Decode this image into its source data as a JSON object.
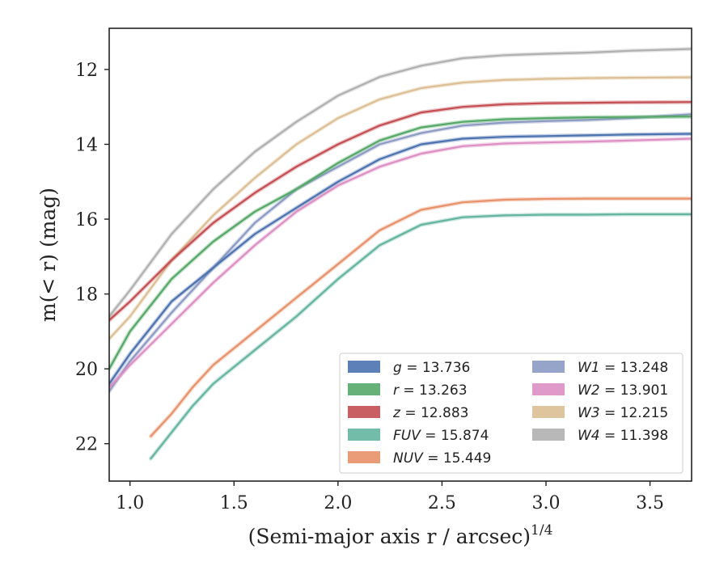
{
  "chart_data": {
    "type": "line",
    "xlabel": "(Semi-major axis r / arcsec)",
    "xlabel_exponent": "1/4",
    "ylabel": "m(< r) (mag)",
    "xlim": [
      0.9,
      3.7
    ],
    "ylim": [
      23.0,
      10.9
    ],
    "y_inverted": true,
    "x_ticks": [
      1.0,
      1.5,
      2.0,
      2.5,
      3.0,
      3.5
    ],
    "x_tick_labels": [
      "1.0",
      "1.5",
      "2.0",
      "2.5",
      "3.0",
      "3.5"
    ],
    "y_ticks": [
      12,
      14,
      16,
      18,
      20,
      22
    ],
    "y_tick_labels": [
      "12",
      "14",
      "16",
      "18",
      "20",
      "22"
    ],
    "grid": false,
    "legend": {
      "placement": "lower-right",
      "columns": 2
    },
    "series": [
      {
        "name": "g = 13.736",
        "band": "g",
        "value": "13.736",
        "color": "#4c72b0",
        "x": [
          0.9,
          1.0,
          1.2,
          1.4,
          1.6,
          1.8,
          2.0,
          2.2,
          2.4,
          2.6,
          2.8,
          3.0,
          3.2,
          3.4,
          3.7
        ],
        "y": [
          20.4,
          19.6,
          18.2,
          17.3,
          16.4,
          15.7,
          15.0,
          14.4,
          14.0,
          13.85,
          13.8,
          13.78,
          13.76,
          13.74,
          13.72
        ]
      },
      {
        "name": "r = 13.263",
        "band": "r",
        "value": "13.263",
        "color": "#55a868",
        "x": [
          0.9,
          1.0,
          1.2,
          1.4,
          1.6,
          1.8,
          2.0,
          2.2,
          2.4,
          2.6,
          2.8,
          3.0,
          3.2,
          3.4,
          3.7
        ],
        "y": [
          20.0,
          19.0,
          17.6,
          16.6,
          15.8,
          15.2,
          14.5,
          13.9,
          13.55,
          13.4,
          13.33,
          13.3,
          13.28,
          13.27,
          13.26
        ]
      },
      {
        "name": "z = 12.883",
        "band": "z",
        "value": "12.883",
        "color": "#c44e52",
        "x": [
          0.9,
          1.0,
          1.2,
          1.4,
          1.6,
          1.8,
          2.0,
          2.2,
          2.4,
          2.6,
          2.8,
          3.0,
          3.2,
          3.4,
          3.7
        ],
        "y": [
          18.7,
          18.2,
          17.1,
          16.1,
          15.3,
          14.6,
          14.0,
          13.5,
          13.15,
          13.0,
          12.93,
          12.9,
          12.89,
          12.88,
          12.87
        ]
      },
      {
        "name": "FUV = 15.874",
        "band": "FUV",
        "value": "15.874",
        "color": "#64b5a0",
        "x": [
          1.1,
          1.2,
          1.3,
          1.4,
          1.6,
          1.8,
          2.0,
          2.2,
          2.4,
          2.6,
          2.8,
          3.0,
          3.2,
          3.4,
          3.7
        ],
        "y": [
          22.4,
          21.7,
          21.0,
          20.4,
          19.5,
          18.6,
          17.6,
          16.7,
          16.15,
          15.95,
          15.9,
          15.88,
          15.88,
          15.87,
          15.87
        ]
      },
      {
        "name": "NUV = 15.449",
        "band": "NUV",
        "value": "15.449",
        "color": "#e8916a",
        "x": [
          1.1,
          1.2,
          1.3,
          1.4,
          1.6,
          1.8,
          2.0,
          2.2,
          2.4,
          2.6,
          2.8,
          3.0,
          3.2,
          3.4,
          3.7
        ],
        "y": [
          21.8,
          21.2,
          20.5,
          19.9,
          19.0,
          18.1,
          17.2,
          16.3,
          15.75,
          15.55,
          15.48,
          15.46,
          15.45,
          15.45,
          15.45
        ]
      },
      {
        "name": "W1 = 13.248",
        "band": "W1",
        "value": "13.248",
        "color": "#8c9ac4",
        "x": [
          0.9,
          1.0,
          1.2,
          1.4,
          1.6,
          1.8,
          2.0,
          2.2,
          2.4,
          2.6,
          2.8,
          3.0,
          3.2,
          3.4,
          3.7
        ],
        "y": [
          20.6,
          19.8,
          18.5,
          17.3,
          16.1,
          15.2,
          14.6,
          14.0,
          13.7,
          13.5,
          13.42,
          13.38,
          13.35,
          13.3,
          13.2
        ]
      },
      {
        "name": "W2 = 13.901",
        "band": "W2",
        "value": "13.901",
        "color": "#dd8fc4",
        "x": [
          0.9,
          1.0,
          1.2,
          1.4,
          1.6,
          1.8,
          2.0,
          2.2,
          2.4,
          2.6,
          2.8,
          3.0,
          3.2,
          3.4,
          3.7
        ],
        "y": [
          20.5,
          19.9,
          18.8,
          17.7,
          16.7,
          15.8,
          15.1,
          14.6,
          14.25,
          14.05,
          13.98,
          13.95,
          13.93,
          13.9,
          13.85
        ]
      },
      {
        "name": "W3 = 12.215",
        "band": "W3",
        "value": "12.215",
        "color": "#dcbf94",
        "x": [
          0.9,
          1.0,
          1.2,
          1.4,
          1.6,
          1.8,
          2.0,
          2.2,
          2.4,
          2.6,
          2.8,
          3.0,
          3.2,
          3.4,
          3.7
        ],
        "y": [
          19.2,
          18.6,
          17.1,
          15.9,
          14.9,
          14.0,
          13.3,
          12.8,
          12.5,
          12.35,
          12.28,
          12.25,
          12.23,
          12.22,
          12.21
        ]
      },
      {
        "name": "W4 = 11.398",
        "band": "W4",
        "value": "11.398",
        "color": "#b0b0b0",
        "x": [
          0.9,
          1.0,
          1.2,
          1.4,
          1.6,
          1.8,
          2.0,
          2.2,
          2.4,
          2.6,
          2.8,
          3.0,
          3.2,
          3.4,
          3.7
        ],
        "y": [
          18.6,
          17.9,
          16.4,
          15.2,
          14.2,
          13.4,
          12.7,
          12.2,
          11.9,
          11.7,
          11.62,
          11.58,
          11.55,
          11.5,
          11.45
        ]
      }
    ]
  }
}
